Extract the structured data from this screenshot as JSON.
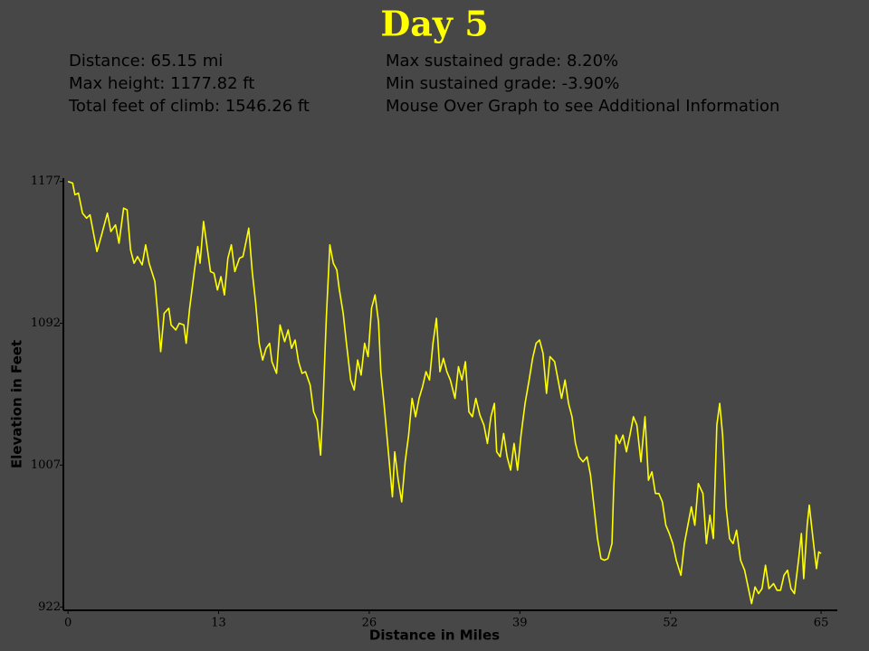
{
  "chart_data": {
    "type": "line",
    "title": "Day 5",
    "annotations": [
      "Distance: 65.15 mi",
      "Max height: 1177.82 ft",
      "Total feet of climb: 1546.26 ft",
      "Max sustained grade: 8.20%",
      "Min sustained grade: -3.90%",
      "Mouse Over Graph to see Additional Information"
    ],
    "x_label": "Distance in Miles",
    "y_label": "Elevation in Feet",
    "xlim": [
      -0.4,
      66.4
    ],
    "ylim": [
      920,
      1179
    ],
    "xticks": [
      0,
      13,
      26,
      39,
      52,
      65
    ],
    "yticks": [
      922,
      1007,
      1092,
      1177
    ],
    "color": "#ffff00",
    "x": [
      0,
      0.4,
      0.6,
      0.9,
      1.25,
      1.6,
      1.9,
      2.2,
      2.5,
      2.9,
      3.4,
      3.7,
      4.1,
      4.4,
      4.8,
      5.1,
      5.4,
      5.7,
      6.0,
      6.4,
      6.7,
      7.0,
      7.5,
      7.7,
      8.0,
      8.3,
      8.7,
      8.9,
      9.3,
      9.6,
      10.0,
      10.2,
      10.5,
      10.9,
      11.2,
      11.4,
      11.7,
      12.0,
      12.3,
      12.6,
      12.9,
      13.2,
      13.5,
      13.8,
      14.1,
      14.4,
      14.8,
      15.1,
      15.4,
      15.6,
      15.9,
      16.2,
      16.5,
      16.8,
      17.1,
      17.4,
      17.6,
      18.0,
      18.3,
      18.7,
      19.0,
      19.3,
      19.6,
      19.9,
      20.2,
      20.5,
      20.9,
      21.2,
      21.5,
      21.8,
      22.0,
      22.3,
      22.6,
      22.9,
      23.2,
      23.4,
      23.75,
      24.0,
      24.4,
      24.7,
      25.0,
      25.3,
      25.6,
      25.9,
      26.2,
      26.5,
      26.8,
      27.0,
      27.3,
      27.65,
      28.0,
      28.2,
      28.5,
      28.8,
      29.1,
      29.4,
      29.7,
      30.0,
      30.3,
      30.6,
      30.9,
      31.2,
      31.5,
      31.8,
      32.1,
      32.4,
      32.7,
      33.0,
      33.4,
      33.7,
      34.0,
      34.3,
      34.6,
      34.9,
      35.2,
      35.55,
      35.9,
      36.2,
      36.5,
      36.8,
      37.0,
      37.3,
      37.6,
      37.9,
      38.2,
      38.5,
      38.8,
      39.1,
      39.45,
      39.8,
      40.1,
      40.4,
      40.7,
      41.0,
      41.3,
      41.6,
      42.0,
      42.3,
      42.6,
      42.9,
      43.2,
      43.5,
      43.8,
      44.1,
      44.45,
      44.8,
      45.1,
      45.4,
      45.7,
      46.0,
      46.3,
      46.6,
      46.95,
      47.1,
      47.3,
      47.6,
      47.9,
      48.2,
      48.5,
      48.8,
      49.1,
      49.45,
      49.8,
      50.1,
      50.4,
      50.7,
      51.0,
      51.3,
      51.6,
      51.9,
      52.2,
      52.5,
      52.9,
      53.2,
      53.5,
      53.8,
      54.1,
      54.4,
      54.8,
      55.1,
      55.4,
      55.7,
      56.0,
      56.25,
      56.5,
      56.8,
      57.1,
      57.4,
      57.7,
      58.05,
      58.4,
      58.7,
      59.0,
      59.3,
      59.6,
      59.9,
      60.2,
      60.5,
      60.9,
      61.2,
      61.5,
      61.8,
      62.1,
      62.4,
      62.7,
      63.05,
      63.3,
      63.5,
      63.8,
      63.98,
      64.3,
      64.6,
      64.8,
      65.0
    ],
    "values": [
      1177,
      1176,
      1169,
      1170,
      1158,
      1155,
      1157,
      1146,
      1135,
      1145,
      1158,
      1147,
      1151,
      1140,
      1161,
      1160,
      1136,
      1128,
      1132,
      1127,
      1139,
      1128,
      1117,
      1101,
      1075,
      1098,
      1101,
      1091,
      1088,
      1092,
      1091,
      1080,
      1101,
      1123,
      1138,
      1128,
      1153,
      1138,
      1123,
      1122,
      1112,
      1120,
      1109,
      1131,
      1139,
      1123,
      1131,
      1132,
      1142,
      1149,
      1123,
      1104,
      1080,
      1070,
      1077,
      1080,
      1069,
      1062,
      1091,
      1081,
      1088,
      1077,
      1082,
      1069,
      1062,
      1063,
      1055,
      1039,
      1034,
      1013,
      1042,
      1096,
      1139,
      1128,
      1124,
      1113,
      1098,
      1082,
      1058,
      1052,
      1070,
      1061,
      1080,
      1072,
      1101,
      1109,
      1093,
      1063,
      1042,
      1015,
      988,
      1015,
      998,
      985,
      1009,
      1025,
      1047,
      1036,
      1047,
      1054,
      1063,
      1058,
      1080,
      1095,
      1063,
      1071,
      1063,
      1058,
      1047,
      1066,
      1058,
      1069,
      1039,
      1036,
      1047,
      1037,
      1031,
      1020,
      1036,
      1044,
      1015,
      1012,
      1026,
      1012,
      1004,
      1020,
      1004,
      1025,
      1044,
      1058,
      1071,
      1080,
      1082,
      1074,
      1050,
      1072,
      1069,
      1058,
      1047,
      1058,
      1044,
      1036,
      1020,
      1012,
      1009,
      1012,
      1001,
      982,
      963,
      951,
      950,
      951,
      960,
      993,
      1025,
      1020,
      1025,
      1015,
      1025,
      1036,
      1031,
      1009,
      1036,
      998,
      1003,
      990,
      990,
      985,
      971,
      966,
      960,
      950,
      941,
      960,
      971,
      982,
      971,
      996,
      990,
      960,
      977,
      963,
      1031,
      1044,
      1025,
      982,
      963,
      960,
      968,
      950,
      944,
      934,
      924,
      934,
      930,
      933,
      947,
      933,
      936,
      932,
      932,
      941,
      944,
      933,
      930,
      950,
      966,
      939,
      971,
      983,
      963,
      945,
      955,
      954
    ]
  }
}
